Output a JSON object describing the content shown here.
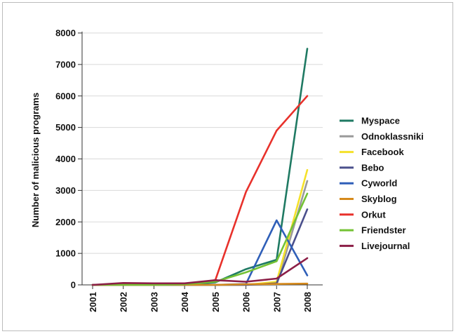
{
  "chart_data": {
    "type": "line",
    "title": "",
    "xlabel": "",
    "ylabel": "Number of malicious programs",
    "x": [
      "2001",
      "2002",
      "2003",
      "2004",
      "2005",
      "2006",
      "2007",
      "2008"
    ],
    "ylim": [
      0,
      8000
    ],
    "yticks": [
      0,
      1000,
      2000,
      3000,
      4000,
      5000,
      6000,
      7000,
      8000
    ],
    "grid": true,
    "legend_position": "right",
    "series": [
      {
        "name": "Myspace",
        "color": "#1f7a63",
        "values": [
          0,
          5,
          5,
          10,
          80,
          500,
          800,
          7500
        ]
      },
      {
        "name": "Odnoklassniki",
        "color": "#9a9a9a",
        "values": [
          0,
          0,
          0,
          0,
          0,
          0,
          0,
          3300
        ]
      },
      {
        "name": "Facebook",
        "color": "#f5e12a",
        "values": [
          0,
          0,
          0,
          0,
          0,
          0,
          100,
          3650
        ]
      },
      {
        "name": "Bebo",
        "color": "#4a4f8c",
        "values": [
          0,
          0,
          0,
          0,
          0,
          0,
          50,
          2400
        ]
      },
      {
        "name": "Cyworld",
        "color": "#2f5fb8",
        "values": [
          0,
          0,
          0,
          0,
          0,
          30,
          2050,
          300
        ]
      },
      {
        "name": "Skyblog",
        "color": "#d68a1c",
        "values": [
          0,
          0,
          0,
          0,
          0,
          20,
          30,
          40
        ]
      },
      {
        "name": "Orkut",
        "color": "#e8312b",
        "values": [
          0,
          0,
          0,
          20,
          150,
          2950,
          4900,
          6000
        ]
      },
      {
        "name": "Friendster",
        "color": "#74c234",
        "values": [
          0,
          0,
          0,
          20,
          100,
          400,
          750,
          2900
        ]
      },
      {
        "name": "Livejournal",
        "color": "#8c1f47",
        "values": [
          0,
          60,
          50,
          50,
          150,
          100,
          200,
          850
        ]
      }
    ]
  }
}
